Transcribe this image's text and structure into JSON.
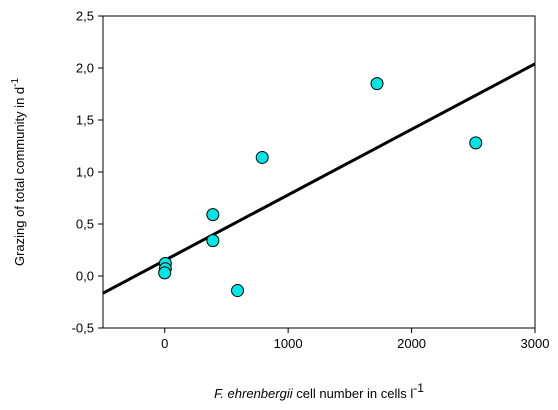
{
  "chart_data": {
    "type": "scatter",
    "xlabel_italic": "F. ehrenbergii",
    "xlabel_rest": " cell number in cells l",
    "xlabel_sup": "-1",
    "ylabel_main": "Grazing of total community in d",
    "ylabel_sup": "-1",
    "xlim": [
      -500,
      3000
    ],
    "ylim": [
      -0.5,
      2.5
    ],
    "xticks": [
      0,
      1000,
      2000,
      3000
    ],
    "xtick_labels": [
      "0",
      "1000",
      "2000",
      "3000"
    ],
    "yticks": [
      -0.5,
      0.0,
      0.5,
      1.0,
      1.5,
      2.0,
      2.5
    ],
    "ytick_labels": [
      "-0,5",
      "0,0",
      "0,5",
      "1,0",
      "1,5",
      "2,0",
      "2,5"
    ],
    "points": [
      {
        "x": 5,
        "y": 0.12
      },
      {
        "x": 5,
        "y": 0.07
      },
      {
        "x": 0,
        "y": 0.03
      },
      {
        "x": 390,
        "y": 0.59
      },
      {
        "x": 390,
        "y": 0.34
      },
      {
        "x": 590,
        "y": -0.14
      },
      {
        "x": 790,
        "y": 1.14
      },
      {
        "x": 1720,
        "y": 1.85
      },
      {
        "x": 2520,
        "y": 1.28
      }
    ],
    "regression_line": {
      "x": [
        -500,
        3000
      ],
      "y": [
        -0.165,
        2.04
      ]
    },
    "marker_color": "#00e5e5",
    "marker_edge": "#000000",
    "line_color": "#000000",
    "grid": false,
    "legend": "none"
  }
}
